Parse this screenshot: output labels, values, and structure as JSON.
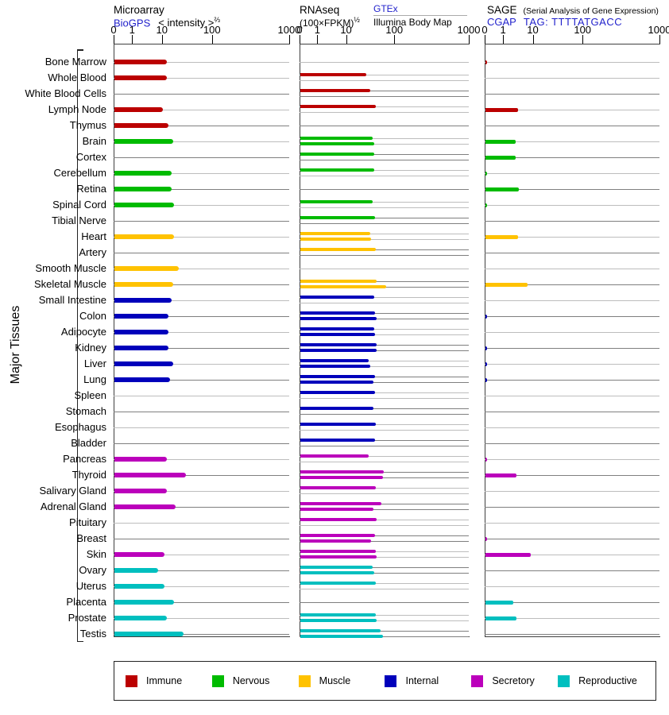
{
  "header": {
    "microarray": {
      "title": "Microarray",
      "link": "BioGPS",
      "scale": "< intensity >",
      "scale_sup": "⅔"
    },
    "rnaseq": {
      "title": "RNAseq",
      "scale": "(100×FPKM)",
      "scale_sup": "½",
      "link": "GTEx",
      "sublabel": "Illumina Body Map"
    },
    "sage": {
      "title": "SAGE",
      "note": "(Serial Analysis of Gene Expression)",
      "link": "CGAP",
      "tag": "TAG: TTTTATGACC"
    }
  },
  "left_axis_label": "Major Tissues",
  "legend": {
    "items": [
      {
        "label": "Immune",
        "color": "#BB0000"
      },
      {
        "label": "Nervous",
        "color": "#00BB00"
      },
      {
        "label": "Muscle",
        "color": "#FFC200"
      },
      {
        "label": "Internal",
        "color": "#0000BB"
      },
      {
        "label": "Secretory",
        "color": "#BB00BB"
      },
      {
        "label": "Reproductive",
        "color": "#00BFBF"
      }
    ]
  },
  "chart_data": {
    "type": "bar",
    "orientation": "horizontal",
    "panels": [
      "Microarray",
      "RNAseq",
      "SAGE"
    ],
    "axis_ticks": [
      0,
      1,
      10,
      100,
      1000
    ],
    "axis_scale": "nonlinear 0-1000, ticks at 0/1/10/100/1000",
    "group_colors": {
      "Immune": "#BB0000",
      "Nervous": "#00BB00",
      "Muscle": "#FFC200",
      "Internal": "#0000BB",
      "Secretory": "#BB00BB",
      "Reproductive": "#00BFBF"
    },
    "tissues": [
      {
        "name": "Bone Marrow",
        "group": "Immune",
        "microarray": 12,
        "rnaseq": [],
        "sage": 0.1
      },
      {
        "name": "Whole Blood",
        "group": "Immune",
        "microarray": 12,
        "rnaseq": [
          25
        ],
        "sage": 0
      },
      {
        "name": "White Blood Cells",
        "group": "Immune",
        "microarray": 0,
        "rnaseq": [
          30
        ],
        "sage": 0
      },
      {
        "name": "Lymph Node",
        "group": "Immune",
        "microarray": 10,
        "rnaseq": [
          40
        ],
        "sage": 3
      },
      {
        "name": "Thymus",
        "group": "Immune",
        "microarray": 13,
        "rnaseq": [],
        "sage": 0
      },
      {
        "name": "Brain",
        "group": "Nervous",
        "microarray": 16,
        "rnaseq": [
          34,
          37
        ],
        "sage": 2.5
      },
      {
        "name": "Cortex",
        "group": "Nervous",
        "microarray": 0,
        "rnaseq": [
          37
        ],
        "sage": 2.5
      },
      {
        "name": "Cerebellum",
        "group": "Nervous",
        "microarray": 15,
        "rnaseq": [
          37
        ],
        "sage": 0.1
      },
      {
        "name": "Retina",
        "group": "Nervous",
        "microarray": 15,
        "rnaseq": [],
        "sage": 3.2
      },
      {
        "name": "Spinal Cord",
        "group": "Nervous",
        "microarray": 17,
        "rnaseq": [
          34
        ],
        "sage": 0.1
      },
      {
        "name": "Tibial Nerve",
        "group": "Nervous",
        "microarray": 0,
        "rnaseq": [
          38
        ],
        "sage": 0
      },
      {
        "name": "Heart",
        "group": "Muscle",
        "microarray": 17,
        "rnaseq": [
          30,
          32
        ],
        "sage": 3
      },
      {
        "name": "Artery",
        "group": "Muscle",
        "microarray": 0,
        "rnaseq": [
          40
        ],
        "sage": 0
      },
      {
        "name": "Smooth Muscle",
        "group": "Muscle",
        "microarray": 21,
        "rnaseq": [],
        "sage": 0
      },
      {
        "name": "Skeletal Muscle",
        "group": "Muscle",
        "microarray": 16,
        "rnaseq": [
          41,
          65
        ],
        "sage": 6.3
      },
      {
        "name": "Small Intestine",
        "group": "Internal",
        "microarray": 15,
        "rnaseq": [
          37
        ],
        "sage": 0
      },
      {
        "name": "Colon",
        "group": "Internal",
        "microarray": 13,
        "rnaseq": [
          38,
          42
        ],
        "sage": 0.1
      },
      {
        "name": "Adipocyte",
        "group": "Internal",
        "microarray": 13,
        "rnaseq": [
          37,
          39
        ],
        "sage": 0
      },
      {
        "name": "Kidney",
        "group": "Internal",
        "microarray": 13,
        "rnaseq": [
          41,
          41
        ],
        "sage": 0.1
      },
      {
        "name": "Liver",
        "group": "Internal",
        "microarray": 16,
        "rnaseq": [
          28,
          31
        ],
        "sage": 0.1
      },
      {
        "name": "Lung",
        "group": "Internal",
        "microarray": 14,
        "rnaseq": [
          38,
          36
        ],
        "sage": 0.1
      },
      {
        "name": "Spleen",
        "group": "Internal",
        "microarray": 0,
        "rnaseq": [
          38
        ],
        "sage": 0
      },
      {
        "name": "Stomach",
        "group": "Internal",
        "microarray": 0,
        "rnaseq": [
          36
        ],
        "sage": 0
      },
      {
        "name": "Esophagus",
        "group": "Internal",
        "microarray": 0,
        "rnaseq": [
          40
        ],
        "sage": 0
      },
      {
        "name": "Bladder",
        "group": "Internal",
        "microarray": 0,
        "rnaseq": [
          39
        ],
        "sage": 0
      },
      {
        "name": "Pancreas",
        "group": "Secretory",
        "microarray": 12,
        "rnaseq": [
          28
        ],
        "sage": 0.1
      },
      {
        "name": "Thyroid",
        "group": "Secretory",
        "microarray": 29,
        "rnaseq": [
          58,
          57
        ],
        "sage": 2.7
      },
      {
        "name": "Salivary Gland",
        "group": "Secretory",
        "microarray": 12,
        "rnaseq": [
          40
        ],
        "sage": 0
      },
      {
        "name": "Adrenal Gland",
        "group": "Secretory",
        "microarray": 18,
        "rnaseq": [
          52,
          35
        ],
        "sage": 0
      },
      {
        "name": "Pituitary",
        "group": "Secretory",
        "microarray": 0,
        "rnaseq": [
          41
        ],
        "sage": 0
      },
      {
        "name": "Breast",
        "group": "Secretory",
        "microarray": 0,
        "rnaseq": [
          39,
          32
        ],
        "sage": 0.1
      },
      {
        "name": "Skin",
        "group": "Secretory",
        "microarray": 11,
        "rnaseq": [
          40,
          41
        ],
        "sage": 8
      },
      {
        "name": "Ovary",
        "group": "Reproductive",
        "microarray": 7,
        "rnaseq": [
          34,
          37
        ],
        "sage": 0
      },
      {
        "name": "Uterus",
        "group": "Reproductive",
        "microarray": 11,
        "rnaseq": [
          40
        ],
        "sage": 0
      },
      {
        "name": "Placenta",
        "group": "Reproductive",
        "microarray": 17,
        "rnaseq": [],
        "sage": 2.1
      },
      {
        "name": "Prostate",
        "group": "Reproductive",
        "microarray": 12,
        "rnaseq": [
          40,
          42
        ],
        "sage": 2.7
      },
      {
        "name": "Testis",
        "group": "Reproductive",
        "microarray": 26,
        "rnaseq": [
          50,
          57
        ],
        "sage": 0
      }
    ]
  }
}
